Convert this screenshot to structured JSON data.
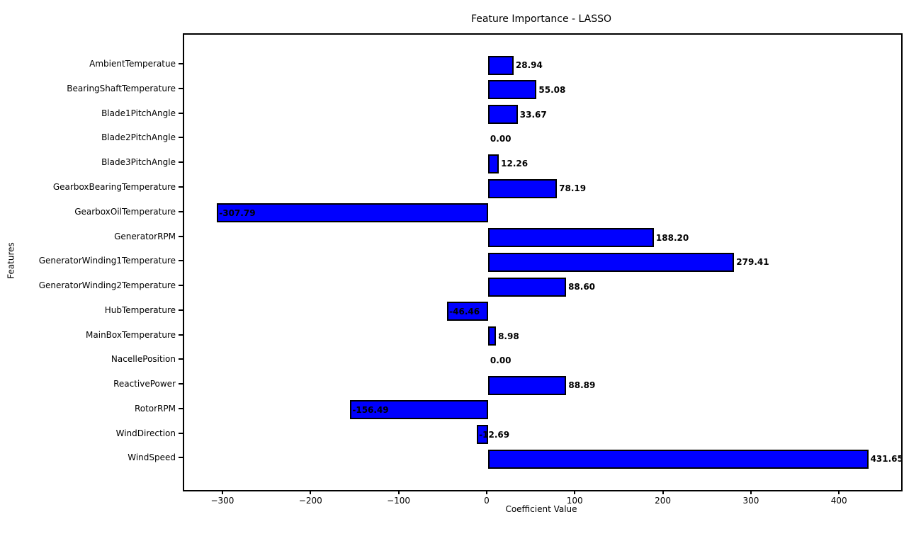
{
  "chart_data": {
    "type": "bar",
    "orientation": "horizontal",
    "title": "Feature Importance - LASSO",
    "xlabel": "Coefficient Value",
    "ylabel": "Features",
    "categories": [
      "AmbientTemperatue",
      "BearingShaftTemperature",
      "Blade1PitchAngle",
      "Blade2PitchAngle",
      "Blade3PitchAngle",
      "GearboxBearingTemperature",
      "GearboxOilTemperature",
      "GeneratorRPM",
      "GeneratorWinding1Temperature",
      "GeneratorWinding2Temperature",
      "HubTemperature",
      "MainBoxTemperature",
      "NacellePosition",
      "ReactivePower",
      "RotorRPM",
      "WindDirection",
      "WindSpeed"
    ],
    "values": [
      28.94,
      55.08,
      33.67,
      0.0,
      12.26,
      78.19,
      -307.79,
      188.2,
      279.41,
      88.6,
      -46.46,
      8.98,
      0.0,
      88.89,
      -156.49,
      -12.69,
      431.65
    ],
    "value_labels": [
      "28.94",
      "55.08",
      "33.67",
      "0.00",
      "12.26",
      "78.19",
      "-307.79",
      "188.20",
      "279.41",
      "88.60",
      "-46.46",
      "8.98",
      "0.00",
      "88.89",
      "-156.49",
      "-12.69",
      "431.65"
    ],
    "x_ticks": [
      -300,
      -200,
      -100,
      0,
      100,
      200,
      300,
      400
    ],
    "x_tick_labels": [
      "−300",
      "−200",
      "−100",
      "0",
      "100",
      "200",
      "300",
      "400"
    ],
    "xlim": [
      -345,
      469
    ],
    "grid": false,
    "legend": null,
    "bar_color": "#0000ff",
    "bar_edge_color": "#000000",
    "background_color": "#ffffff",
    "text_color": "#000000"
  }
}
